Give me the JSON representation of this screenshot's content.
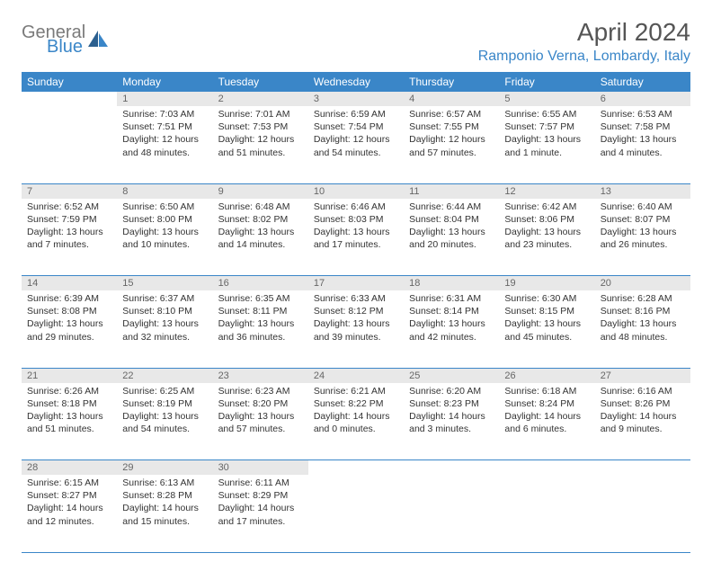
{
  "logo": {
    "top": "General",
    "bottom": "Blue"
  },
  "title": "April 2024",
  "location": "Ramponio Verna, Lombardy, Italy",
  "colors": {
    "header_bg": "#3a86c8",
    "header_text": "#ffffff",
    "daynum_bg": "#e8e8e8",
    "daynum_text": "#666666",
    "body_text": "#333333",
    "accent": "#3a86c8",
    "logo_gray": "#7a7a7a",
    "logo_blue": "#3a86c8",
    "page_bg": "#ffffff"
  },
  "weekdays": [
    "Sunday",
    "Monday",
    "Tuesday",
    "Wednesday",
    "Thursday",
    "Friday",
    "Saturday"
  ],
  "weeks": [
    [
      {
        "n": "",
        "empty": true
      },
      {
        "n": "1",
        "sunrise": "Sunrise: 7:03 AM",
        "sunset": "Sunset: 7:51 PM",
        "day1": "Daylight: 12 hours",
        "day2": "and 48 minutes."
      },
      {
        "n": "2",
        "sunrise": "Sunrise: 7:01 AM",
        "sunset": "Sunset: 7:53 PM",
        "day1": "Daylight: 12 hours",
        "day2": "and 51 minutes."
      },
      {
        "n": "3",
        "sunrise": "Sunrise: 6:59 AM",
        "sunset": "Sunset: 7:54 PM",
        "day1": "Daylight: 12 hours",
        "day2": "and 54 minutes."
      },
      {
        "n": "4",
        "sunrise": "Sunrise: 6:57 AM",
        "sunset": "Sunset: 7:55 PM",
        "day1": "Daylight: 12 hours",
        "day2": "and 57 minutes."
      },
      {
        "n": "5",
        "sunrise": "Sunrise: 6:55 AM",
        "sunset": "Sunset: 7:57 PM",
        "day1": "Daylight: 13 hours",
        "day2": "and 1 minute."
      },
      {
        "n": "6",
        "sunrise": "Sunrise: 6:53 AM",
        "sunset": "Sunset: 7:58 PM",
        "day1": "Daylight: 13 hours",
        "day2": "and 4 minutes."
      }
    ],
    [
      {
        "n": "7",
        "sunrise": "Sunrise: 6:52 AM",
        "sunset": "Sunset: 7:59 PM",
        "day1": "Daylight: 13 hours",
        "day2": "and 7 minutes."
      },
      {
        "n": "8",
        "sunrise": "Sunrise: 6:50 AM",
        "sunset": "Sunset: 8:00 PM",
        "day1": "Daylight: 13 hours",
        "day2": "and 10 minutes."
      },
      {
        "n": "9",
        "sunrise": "Sunrise: 6:48 AM",
        "sunset": "Sunset: 8:02 PM",
        "day1": "Daylight: 13 hours",
        "day2": "and 14 minutes."
      },
      {
        "n": "10",
        "sunrise": "Sunrise: 6:46 AM",
        "sunset": "Sunset: 8:03 PM",
        "day1": "Daylight: 13 hours",
        "day2": "and 17 minutes."
      },
      {
        "n": "11",
        "sunrise": "Sunrise: 6:44 AM",
        "sunset": "Sunset: 8:04 PM",
        "day1": "Daylight: 13 hours",
        "day2": "and 20 minutes."
      },
      {
        "n": "12",
        "sunrise": "Sunrise: 6:42 AM",
        "sunset": "Sunset: 8:06 PM",
        "day1": "Daylight: 13 hours",
        "day2": "and 23 minutes."
      },
      {
        "n": "13",
        "sunrise": "Sunrise: 6:40 AM",
        "sunset": "Sunset: 8:07 PM",
        "day1": "Daylight: 13 hours",
        "day2": "and 26 minutes."
      }
    ],
    [
      {
        "n": "14",
        "sunrise": "Sunrise: 6:39 AM",
        "sunset": "Sunset: 8:08 PM",
        "day1": "Daylight: 13 hours",
        "day2": "and 29 minutes."
      },
      {
        "n": "15",
        "sunrise": "Sunrise: 6:37 AM",
        "sunset": "Sunset: 8:10 PM",
        "day1": "Daylight: 13 hours",
        "day2": "and 32 minutes."
      },
      {
        "n": "16",
        "sunrise": "Sunrise: 6:35 AM",
        "sunset": "Sunset: 8:11 PM",
        "day1": "Daylight: 13 hours",
        "day2": "and 36 minutes."
      },
      {
        "n": "17",
        "sunrise": "Sunrise: 6:33 AM",
        "sunset": "Sunset: 8:12 PM",
        "day1": "Daylight: 13 hours",
        "day2": "and 39 minutes."
      },
      {
        "n": "18",
        "sunrise": "Sunrise: 6:31 AM",
        "sunset": "Sunset: 8:14 PM",
        "day1": "Daylight: 13 hours",
        "day2": "and 42 minutes."
      },
      {
        "n": "19",
        "sunrise": "Sunrise: 6:30 AM",
        "sunset": "Sunset: 8:15 PM",
        "day1": "Daylight: 13 hours",
        "day2": "and 45 minutes."
      },
      {
        "n": "20",
        "sunrise": "Sunrise: 6:28 AM",
        "sunset": "Sunset: 8:16 PM",
        "day1": "Daylight: 13 hours",
        "day2": "and 48 minutes."
      }
    ],
    [
      {
        "n": "21",
        "sunrise": "Sunrise: 6:26 AM",
        "sunset": "Sunset: 8:18 PM",
        "day1": "Daylight: 13 hours",
        "day2": "and 51 minutes."
      },
      {
        "n": "22",
        "sunrise": "Sunrise: 6:25 AM",
        "sunset": "Sunset: 8:19 PM",
        "day1": "Daylight: 13 hours",
        "day2": "and 54 minutes."
      },
      {
        "n": "23",
        "sunrise": "Sunrise: 6:23 AM",
        "sunset": "Sunset: 8:20 PM",
        "day1": "Daylight: 13 hours",
        "day2": "and 57 minutes."
      },
      {
        "n": "24",
        "sunrise": "Sunrise: 6:21 AM",
        "sunset": "Sunset: 8:22 PM",
        "day1": "Daylight: 14 hours",
        "day2": "and 0 minutes."
      },
      {
        "n": "25",
        "sunrise": "Sunrise: 6:20 AM",
        "sunset": "Sunset: 8:23 PM",
        "day1": "Daylight: 14 hours",
        "day2": "and 3 minutes."
      },
      {
        "n": "26",
        "sunrise": "Sunrise: 6:18 AM",
        "sunset": "Sunset: 8:24 PM",
        "day1": "Daylight: 14 hours",
        "day2": "and 6 minutes."
      },
      {
        "n": "27",
        "sunrise": "Sunrise: 6:16 AM",
        "sunset": "Sunset: 8:26 PM",
        "day1": "Daylight: 14 hours",
        "day2": "and 9 minutes."
      }
    ],
    [
      {
        "n": "28",
        "sunrise": "Sunrise: 6:15 AM",
        "sunset": "Sunset: 8:27 PM",
        "day1": "Daylight: 14 hours",
        "day2": "and 12 minutes."
      },
      {
        "n": "29",
        "sunrise": "Sunrise: 6:13 AM",
        "sunset": "Sunset: 8:28 PM",
        "day1": "Daylight: 14 hours",
        "day2": "and 15 minutes."
      },
      {
        "n": "30",
        "sunrise": "Sunrise: 6:11 AM",
        "sunset": "Sunset: 8:29 PM",
        "day1": "Daylight: 14 hours",
        "day2": "and 17 minutes."
      },
      {
        "n": "",
        "empty": true
      },
      {
        "n": "",
        "empty": true
      },
      {
        "n": "",
        "empty": true
      },
      {
        "n": "",
        "empty": true
      }
    ]
  ]
}
